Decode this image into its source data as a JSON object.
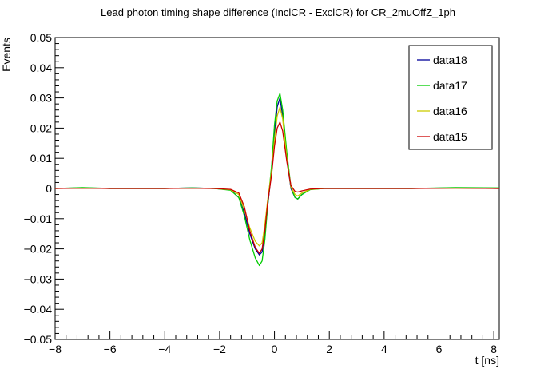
{
  "chart_data": {
    "type": "line",
    "title": "Lead photon timing shape difference (InclCR - ExclCR) for CR_2muOffZ_1ph",
    "xlabel": "t [ns]",
    "ylabel": "Events",
    "xlim": [
      -8,
      8.2
    ],
    "ylim": [
      -0.05,
      0.05
    ],
    "x_ticks": [
      -8,
      -6,
      -4,
      -2,
      0,
      2,
      4,
      6,
      8
    ],
    "y_ticks": [
      -0.05,
      -0.04,
      -0.03,
      -0.02,
      -0.01,
      0,
      0.01,
      0.02,
      0.03,
      0.04,
      0.05
    ],
    "x_tick_labels": [
      "−8",
      "−6",
      "−4",
      "−2",
      "0",
      "2",
      "4",
      "6",
      "8"
    ],
    "y_tick_labels": [
      "−0.05",
      "−0.04",
      "−0.03",
      "−0.02",
      "−0.01",
      "0",
      "0.01",
      "0.02",
      "0.03",
      "0.04",
      "0.05"
    ],
    "grid": false,
    "legend_position": "top-right",
    "series": [
      {
        "name": "data18",
        "color": "#000099",
        "x": [
          -8,
          -7,
          -6,
          -4,
          -3,
          -2.2,
          -1.6,
          -1.3,
          -1.1,
          -0.9,
          -0.7,
          -0.55,
          -0.45,
          -0.35,
          -0.25,
          -0.1,
          0,
          0.1,
          0.2,
          0.3,
          0.45,
          0.6,
          0.75,
          0.85,
          1.0,
          1.3,
          1.8,
          3,
          5,
          6.6,
          8.2
        ],
        "y": [
          0,
          0.0002,
          0,
          0,
          0.0002,
          0,
          -0.0005,
          -0.003,
          -0.008,
          -0.015,
          -0.02,
          -0.022,
          -0.021,
          -0.015,
          -0.006,
          0.006,
          0.018,
          0.027,
          0.03,
          0.024,
          0.01,
          0.0,
          -0.003,
          -0.0035,
          -0.002,
          -0.0003,
          0,
          0,
          0,
          0.0002,
          0
        ]
      },
      {
        "name": "data17",
        "color": "#00cc00",
        "x": [
          -8,
          -7,
          -6,
          -4,
          -3,
          -2.2,
          -1.6,
          -1.3,
          -1.1,
          -0.9,
          -0.7,
          -0.55,
          -0.45,
          -0.35,
          -0.25,
          -0.1,
          0,
          0.1,
          0.2,
          0.3,
          0.45,
          0.6,
          0.75,
          0.85,
          1.0,
          1.3,
          1.8,
          3,
          5,
          6.6,
          8.2
        ],
        "y": [
          0,
          0.0003,
          0,
          0,
          0.0002,
          0,
          -0.0006,
          -0.003,
          -0.009,
          -0.017,
          -0.023,
          -0.0255,
          -0.024,
          -0.017,
          -0.006,
          0.008,
          0.021,
          0.029,
          0.0315,
          0.026,
          0.012,
          0.0005,
          -0.003,
          -0.0035,
          -0.002,
          -0.0004,
          0,
          0,
          0,
          0.0003,
          0.0002
        ]
      },
      {
        "name": "data16",
        "color": "#cccc00",
        "x": [
          -8,
          -7,
          -6,
          -4,
          -3,
          -2.2,
          -1.6,
          -1.3,
          -1.1,
          -0.9,
          -0.7,
          -0.55,
          -0.45,
          -0.35,
          -0.25,
          -0.1,
          0,
          0.1,
          0.2,
          0.3,
          0.45,
          0.6,
          0.75,
          0.85,
          1.0,
          1.3,
          1.8,
          3,
          5,
          6.6,
          8.2
        ],
        "y": [
          0,
          0.0001,
          0,
          0,
          0.0001,
          0,
          -0.0004,
          -0.002,
          -0.007,
          -0.013,
          -0.0175,
          -0.019,
          -0.018,
          -0.012,
          -0.004,
          0.006,
          0.016,
          0.024,
          0.027,
          0.023,
          0.01,
          0.0005,
          -0.002,
          -0.0025,
          -0.0015,
          -0.0003,
          0,
          0,
          0,
          0.0001,
          0
        ]
      },
      {
        "name": "data15",
        "color": "#cc0000",
        "x": [
          -8,
          -7,
          -6,
          -4,
          -3,
          -2.2,
          -1.6,
          -1.3,
          -1.1,
          -0.9,
          -0.7,
          -0.55,
          -0.45,
          -0.35,
          -0.25,
          -0.1,
          0,
          0.1,
          0.2,
          0.3,
          0.45,
          0.6,
          0.75,
          0.85,
          1.0,
          1.3,
          1.8,
          3,
          5,
          6.6,
          8.2
        ],
        "y": [
          0,
          0.0001,
          0,
          0,
          0.0001,
          0,
          -0.0003,
          -0.0015,
          -0.006,
          -0.014,
          -0.0195,
          -0.0215,
          -0.02,
          -0.014,
          -0.005,
          0.005,
          0.014,
          0.02,
          0.022,
          0.019,
          0.009,
          0.001,
          -0.001,
          -0.0012,
          -0.0008,
          -0.0002,
          0,
          0,
          0,
          0.0001,
          0
        ]
      }
    ]
  }
}
